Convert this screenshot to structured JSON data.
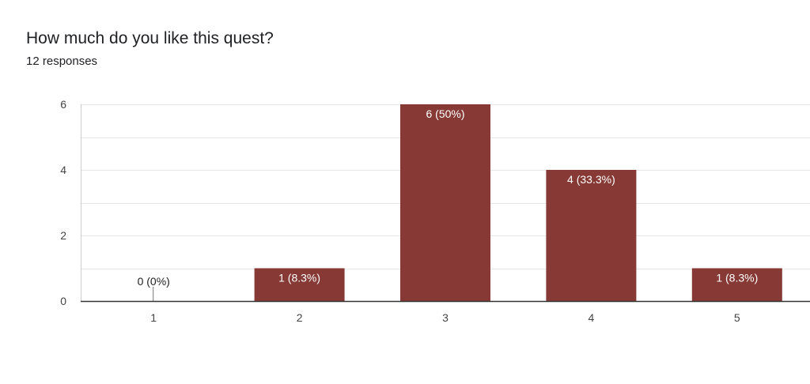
{
  "question": {
    "title": "How much do you like this quest?",
    "responses": "12 responses"
  },
  "colors": {
    "bar": "#873a35",
    "grid": "#e6e6e6",
    "axis": "#333333"
  },
  "chart_data": {
    "type": "bar",
    "title": "How much do you like this quest?",
    "subtitle": "12 responses",
    "categories": [
      "1",
      "2",
      "3",
      "4",
      "5"
    ],
    "values": [
      0,
      1,
      6,
      4,
      1
    ],
    "data_labels": [
      "0 (0%)",
      "1 (8.3%)",
      "6 (50%)",
      "4 (33.3%)",
      "1 (8.3%)"
    ],
    "y_ticks": [
      "0",
      "2",
      "4",
      "6"
    ],
    "ylim": [
      0,
      6
    ],
    "xlabel": "",
    "ylabel": "",
    "grid": true,
    "legend": "none"
  }
}
